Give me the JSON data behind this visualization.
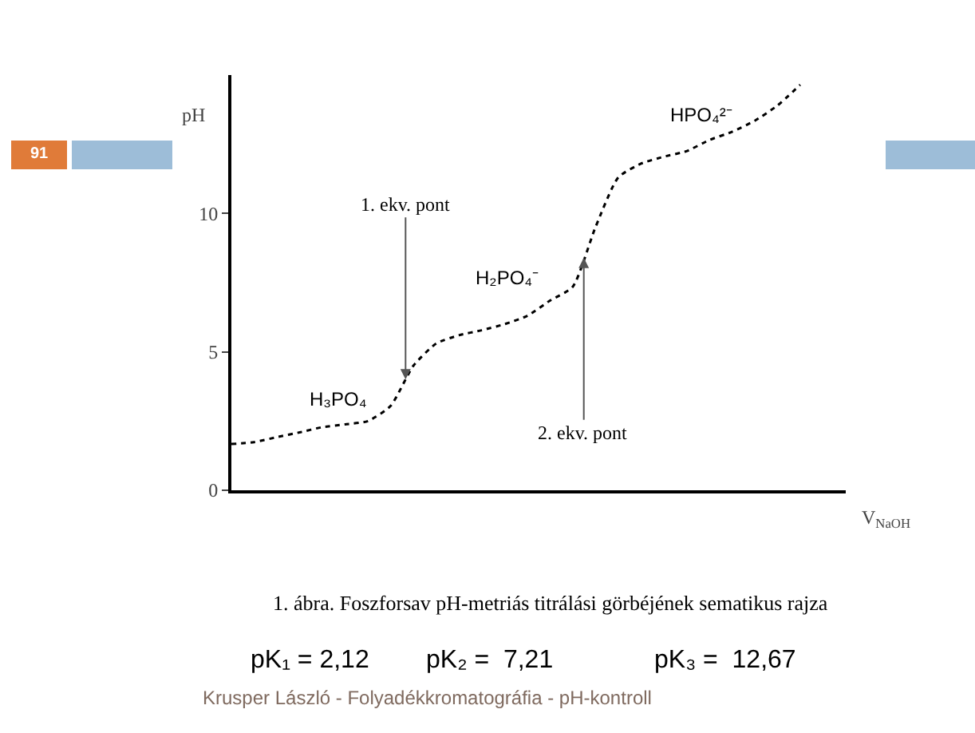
{
  "chart_data": {
    "type": "line",
    "xlabel": "V$_{NaOH}$",
    "ylabel": "pH",
    "categories": [
      null,
      null,
      null,
      null,
      null,
      null,
      null,
      null,
      null,
      null,
      null,
      null,
      null,
      null,
      null,
      null,
      null,
      null,
      null,
      null,
      null,
      null,
      null,
      null,
      null,
      null
    ],
    "series": [
      {
        "color": "#000000",
        "values": [
          1.67,
          1.74,
          1.92,
          2.09,
          2.28,
          2.38,
          2.5,
          3.05,
          4.5,
          5.3,
          5.6,
          5.78,
          6.0,
          6.3,
          6.85,
          7.35,
          9.5,
          11.3,
          11.8,
          12.05,
          12.25,
          12.65,
          12.95,
          13.35,
          13.9,
          14.65
        ]
      }
    ],
    "ylim": [
      0,
      15
    ],
    "yticks": [
      0,
      5,
      10
    ],
    "grid": false,
    "marker": "none",
    "line_style": "dotted",
    "annotations": [
      "H₃PO₄",
      {
        "text": "1. ekv. pont",
        "y": 4.0
      },
      "H₂PO₄⁻",
      {
        "text": "2. ekv. pont",
        "y": 8.4
      },
      "HPO₄²⁻",
      "1. ábra. Foszforsav pH-metriás titrálási görbéjének sematikus rajza",
      "pK₁ = 2,12",
      "pK₂ =  7,21",
      "pK₃ =  12,67",
      "Krusper László - Folyadékkromatográfia - pH-kontroll",
      "91"
    ]
  }
}
